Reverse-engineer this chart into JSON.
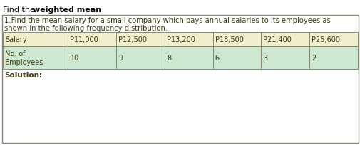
{
  "problem_text_line1": "1.Find the mean salary for a small company which pays annual salaries to its employees as",
  "problem_text_line2": "shown in the following frequency distribution.",
  "col_headers": [
    "Salary",
    "P11,000",
    "P12,500",
    "P13,200",
    "P18,500",
    "P21,400",
    "P25,600"
  ],
  "row_label": "No. of\nEmployees",
  "row_values": [
    "10",
    "9",
    "8",
    "6",
    "3",
    "2"
  ],
  "solution_label": "Solution:",
  "header_color": "#f0eecc",
  "row_color": "#cde8d0",
  "border_color": "#888870",
  "text_color": "#3a3a10",
  "bg_color": "#ffffff",
  "col_widths_rel": [
    1.35,
    1.0,
    1.0,
    1.0,
    1.0,
    1.0,
    1.0
  ]
}
